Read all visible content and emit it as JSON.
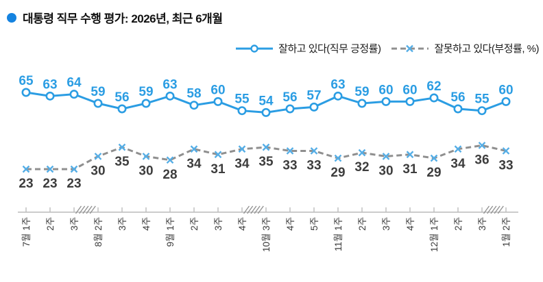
{
  "title": {
    "text": "대통령 직무 수행 평가: 2026년, 최근 6개월",
    "bullet_color": "#1583e0"
  },
  "legend": {
    "positive_label": "잘하고 있다(직무 긍정률)",
    "negative_label": "잘못하고 있다(부정률, %)"
  },
  "colors": {
    "positive_line": "#2b9de3",
    "positive_label_text": "#2b9de3",
    "negative_line": "#8f8f8f",
    "negative_marker": "#55aee6",
    "negative_label_text": "#3d3d3d",
    "axis": "#bcbcbc",
    "tick_label_text": "#3a3a3a"
  },
  "chart_data": {
    "type": "line",
    "title": "대통령 직무 수행 평가: 2026년, 최근 6개월",
    "xlabel": "",
    "ylabel": "",
    "ylim": [
      20,
      70
    ],
    "grid": false,
    "legend_position": "top-right",
    "categories": [
      "7월 1주",
      "2주",
      "3주",
      "8월 2주",
      "3주",
      "4주",
      "9월 1주",
      "2주",
      "3주",
      "4주",
      "10월 3주",
      "4주",
      "5주",
      "11월 1주",
      "2주",
      "3주",
      "4주",
      "12월 1주",
      "2주",
      "3주",
      "1월 2주"
    ],
    "axis_breaks_between": [
      [
        2,
        3
      ],
      [
        9,
        10
      ],
      [
        19,
        20
      ]
    ],
    "series": [
      {
        "name": "잘하고 있다(직무 긍정률)",
        "marker": "circle",
        "line_style": "solid",
        "values": [
          65,
          63,
          64,
          59,
          56,
          59,
          63,
          58,
          60,
          55,
          54,
          56,
          57,
          63,
          59,
          60,
          60,
          62,
          56,
          55,
          60
        ]
      },
      {
        "name": "잘못하고 있다(부정률, %)",
        "marker": "x",
        "line_style": "dashed",
        "values": [
          23,
          23,
          23,
          30,
          35,
          30,
          28,
          34,
          31,
          34,
          35,
          33,
          33,
          29,
          32,
          30,
          31,
          29,
          34,
          36,
          33
        ]
      }
    ]
  }
}
